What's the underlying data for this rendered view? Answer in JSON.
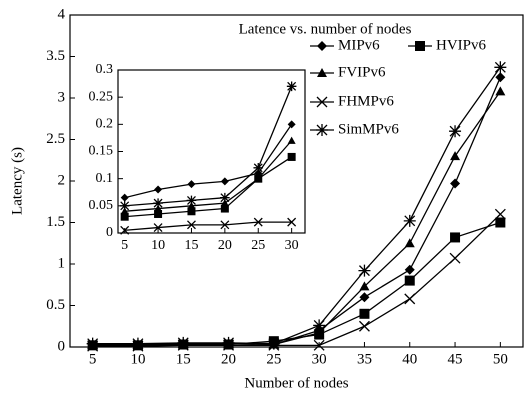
{
  "chart_data": [
    {
      "type": "line",
      "title": "Latence vs. number of nodes",
      "x_label": "Number of nodes",
      "y_label": "Latency (s)",
      "x": [
        5,
        10,
        15,
        20,
        25,
        30,
        35,
        40,
        45,
        50
      ],
      "xlim": [
        2.5,
        52.5
      ],
      "xticks": [
        5,
        10,
        15,
        20,
        25,
        30,
        35,
        40,
        45,
        50
      ],
      "ylim": [
        0,
        4
      ],
      "yticks": [
        0,
        0.5,
        1,
        1.5,
        2,
        2.5,
        3,
        3.5,
        4
      ],
      "legend": "upper right",
      "series": [
        {
          "name": "MIPv6",
          "color": "#000000",
          "marker": "diamond",
          "values": [
            0.03,
            0.03,
            0.04,
            0.04,
            0.03,
            0.2,
            0.6,
            0.93,
            1.97,
            3.25
          ]
        },
        {
          "name": "HVIPv6",
          "color": "#000000",
          "marker": "square",
          "values": [
            0.02,
            0.02,
            0.03,
            0.03,
            0.07,
            0.15,
            0.4,
            0.8,
            1.32,
            1.5
          ]
        },
        {
          "name": "FVIPv6",
          "color": "#000000",
          "marker": "triangle",
          "values": [
            0.03,
            0.03,
            0.04,
            0.04,
            0.03,
            0.17,
            0.73,
            1.25,
            2.3,
            3.08
          ]
        },
        {
          "name": "FHMPv6",
          "color": "#000000",
          "marker": "x",
          "values": [
            0.01,
            0.01,
            0.02,
            0.02,
            0.02,
            0.02,
            0.25,
            0.58,
            1.07,
            1.6
          ]
        },
        {
          "name": "SimMPv6",
          "color": "#000000",
          "marker": "star",
          "values": [
            0.04,
            0.04,
            0.05,
            0.05,
            0.04,
            0.26,
            0.92,
            1.52,
            2.6,
            3.37
          ]
        }
      ]
    },
    {
      "type": "line",
      "x": [
        5,
        10,
        15,
        20,
        25,
        30
      ],
      "xlim": [
        4,
        32
      ],
      "xticks": [
        5,
        10,
        15,
        20,
        25,
        30
      ],
      "ylim": [
        0,
        0.3
      ],
      "yticks": [
        0,
        0.05,
        0.1,
        0.15,
        0.2,
        0.25,
        0.3
      ],
      "series": [
        {
          "color": "#000000",
          "marker": "diamond",
          "values": [
            0.065,
            0.08,
            0.09,
            0.095,
            0.11,
            0.2
          ]
        },
        {
          "color": "#000000",
          "marker": "square",
          "values": [
            0.03,
            0.035,
            0.04,
            0.045,
            0.1,
            0.14
          ]
        },
        {
          "color": "#000000",
          "marker": "triangle",
          "values": [
            0.04,
            0.045,
            0.05,
            0.055,
            0.1,
            0.17
          ]
        },
        {
          "color": "#000000",
          "marker": "x",
          "values": [
            0.005,
            0.01,
            0.015,
            0.015,
            0.02,
            0.02
          ]
        },
        {
          "color": "#000000",
          "marker": "star",
          "values": [
            0.05,
            0.055,
            0.06,
            0.065,
            0.12,
            0.27
          ]
        }
      ]
    }
  ]
}
